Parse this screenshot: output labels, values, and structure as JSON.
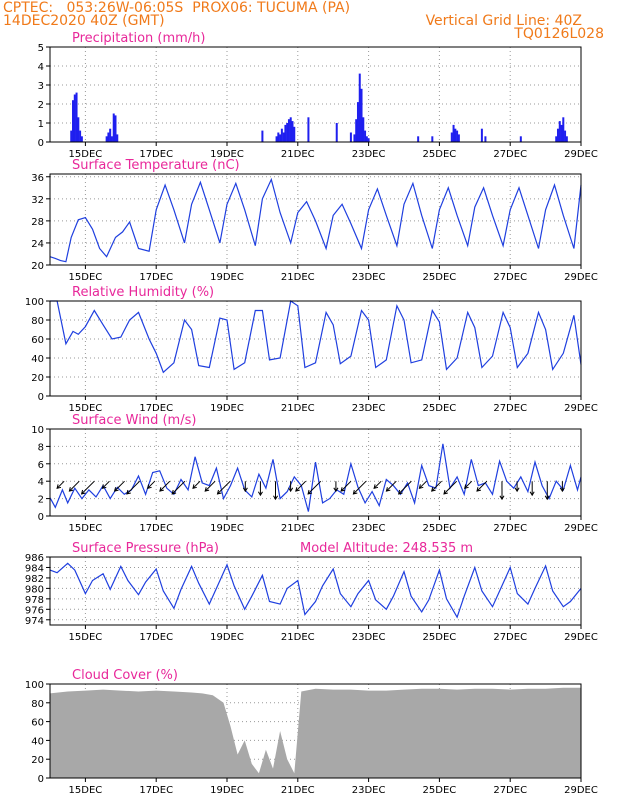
{
  "header": {
    "source": "CPTEC:",
    "coords": "053:26W-06:05S",
    "location": "PROX06: TUCUMA (PA)",
    "date": "14DEC2020 40Z (GMT)",
    "grid_line": "Vertical Grid Line: 40Z",
    "code": "TQ0126L028"
  },
  "chart_data": [
    {
      "type": "bar",
      "title": "Precipitation (mm/h)",
      "ylim": [
        0,
        5
      ],
      "yticks": [
        0,
        1,
        2,
        3,
        4,
        5
      ],
      "xlim": [
        14.0,
        29.0
      ],
      "xticks": [
        "15DEC",
        "17DEC",
        "19DEC",
        "21DEC",
        "23DEC",
        "25DEC",
        "27DEC",
        "29DEC"
      ],
      "xtick_days": [
        15,
        17,
        19,
        21,
        23,
        25,
        27,
        29
      ],
      "series": [
        {
          "x": [
            14.6,
            14.65,
            14.7,
            14.75,
            14.8,
            14.85,
            14.9,
            15.6,
            15.65,
            15.7,
            15.75,
            15.8,
            15.85,
            15.9,
            20.0,
            20.4,
            20.45,
            20.5,
            20.55,
            20.6,
            20.65,
            20.7,
            20.75,
            20.8,
            20.85,
            20.9,
            21.3,
            22.1,
            22.5,
            22.6,
            22.65,
            22.7,
            22.75,
            22.8,
            22.85,
            22.9,
            22.95,
            23.0,
            24.4,
            24.8,
            25.35,
            25.4,
            25.45,
            25.5,
            25.55,
            26.2,
            26.3,
            27.3,
            28.3,
            28.35,
            28.4,
            28.45,
            28.5,
            28.55,
            28.6
          ],
          "values": [
            0.6,
            2.2,
            2.5,
            2.6,
            1.3,
            0.6,
            0.3,
            0.3,
            0.5,
            0.7,
            0.3,
            1.5,
            1.4,
            0.4,
            0.6,
            0.3,
            0.5,
            0.4,
            0.7,
            0.5,
            0.9,
            1.0,
            1.2,
            1.3,
            1.1,
            0.8,
            1.3,
            1.0,
            0.5,
            0.4,
            1.2,
            2.1,
            3.6,
            2.8,
            1.3,
            0.6,
            0.3,
            0.2,
            0.3,
            0.3,
            0.5,
            0.9,
            0.7,
            0.6,
            0.4,
            0.7,
            0.3,
            0.3,
            0.3,
            0.7,
            1.1,
            0.9,
            1.3,
            0.6,
            0.3
          ],
          "color": "#1f1fef"
        }
      ]
    },
    {
      "type": "line",
      "title": "Surface Temperature (nC)",
      "ylim": [
        20,
        36.5
      ],
      "yticks": [
        20,
        24,
        28,
        32,
        36
      ],
      "xlim": [
        14.0,
        29.0
      ],
      "xticks": [
        "15DEC",
        "17DEC",
        "19DEC",
        "21DEC",
        "23DEC",
        "25DEC",
        "27DEC",
        "29DEC"
      ],
      "xtick_days": [
        15,
        17,
        19,
        21,
        23,
        25,
        27,
        29
      ],
      "series": [
        {
          "x": [
            14.0,
            14.15,
            14.3,
            14.45,
            14.6,
            14.8,
            15.0,
            15.2,
            15.4,
            15.6,
            15.85,
            16.05,
            16.25,
            16.5,
            16.8,
            17.0,
            17.25,
            17.5,
            17.8,
            18.0,
            18.25,
            18.5,
            18.8,
            19.0,
            19.25,
            19.5,
            19.8,
            20.0,
            20.25,
            20.5,
            20.8,
            21.0,
            21.25,
            21.5,
            21.8,
            22.0,
            22.25,
            22.5,
            22.8,
            23.0,
            23.25,
            23.5,
            23.8,
            24.0,
            24.25,
            24.5,
            24.8,
            25.0,
            25.25,
            25.5,
            25.8,
            26.0,
            26.25,
            26.5,
            26.8,
            27.0,
            27.25,
            27.5,
            27.8,
            28.0,
            28.25,
            28.5,
            28.8,
            29.0
          ],
          "values": [
            21.5,
            21.2,
            20.8,
            20.6,
            25.0,
            28.2,
            28.6,
            26.5,
            23.0,
            21.5,
            25.0,
            26.0,
            27.8,
            23.0,
            22.5,
            30.0,
            34.5,
            30.0,
            24.0,
            31.0,
            35.0,
            30.0,
            24.0,
            31.0,
            34.8,
            30.0,
            23.5,
            32.0,
            35.5,
            29.5,
            24.0,
            29.5,
            31.5,
            28.0,
            23.0,
            29.0,
            31.0,
            27.5,
            23.0,
            30.0,
            33.8,
            29.0,
            23.5,
            31.0,
            34.8,
            29.0,
            23.0,
            30.0,
            34.0,
            29.0,
            23.5,
            30.5,
            34.0,
            29.0,
            23.5,
            30.0,
            34.0,
            29.0,
            23.0,
            30.0,
            34.5,
            29.0,
            23.0,
            34.5
          ],
          "color": "#1f3fdf"
        }
      ]
    },
    {
      "type": "line",
      "title": "Relative Humidity (%)",
      "ylim": [
        0,
        100
      ],
      "yticks": [
        0,
        20,
        40,
        60,
        80,
        100
      ],
      "xlim": [
        14.0,
        29.0
      ],
      "xticks": [
        "15DEC",
        "17DEC",
        "19DEC",
        "21DEC",
        "23DEC",
        "25DEC",
        "27DEC",
        "29DEC"
      ],
      "xtick_days": [
        15,
        17,
        19,
        21,
        23,
        25,
        27,
        29
      ],
      "series": [
        {
          "x": [
            14.0,
            14.2,
            14.45,
            14.65,
            14.8,
            15.0,
            15.25,
            15.5,
            15.75,
            16.0,
            16.25,
            16.5,
            16.8,
            17.0,
            17.2,
            17.5,
            17.8,
            18.0,
            18.2,
            18.5,
            18.8,
            19.0,
            19.2,
            19.5,
            19.8,
            20.0,
            20.2,
            20.5,
            20.8,
            21.0,
            21.2,
            21.5,
            21.8,
            22.0,
            22.2,
            22.5,
            22.8,
            23.0,
            23.2,
            23.5,
            23.8,
            24.0,
            24.2,
            24.5,
            24.8,
            25.0,
            25.2,
            25.5,
            25.8,
            26.0,
            26.2,
            26.5,
            26.8,
            27.0,
            27.2,
            27.5,
            27.8,
            28.0,
            28.2,
            28.5,
            28.8,
            29.0
          ],
          "values": [
            100,
            100,
            55,
            68,
            65,
            73,
            90,
            75,
            60,
            62,
            80,
            88,
            60,
            45,
            25,
            35,
            80,
            70,
            32,
            30,
            82,
            80,
            28,
            35,
            90,
            90,
            38,
            40,
            100,
            95,
            30,
            35,
            88,
            75,
            34,
            42,
            90,
            80,
            30,
            38,
            95,
            80,
            35,
            38,
            90,
            78,
            28,
            40,
            88,
            72,
            30,
            42,
            88,
            72,
            30,
            45,
            88,
            70,
            28,
            45,
            85,
            33
          ],
          "color": "#1f3fdf"
        }
      ]
    },
    {
      "type": "line",
      "title": "Surface Wind (m/s)",
      "ylim": [
        0,
        10
      ],
      "yticks": [
        0,
        2,
        4,
        6,
        8,
        10
      ],
      "xlim": [
        14.0,
        29.0
      ],
      "xticks": [
        "15DEC",
        "17DEC",
        "19DEC",
        "21DEC",
        "23DEC",
        "25DEC",
        "27DEC",
        "29DEC"
      ],
      "xtick_days": [
        15,
        17,
        19,
        21,
        23,
        25,
        27,
        29
      ],
      "series": [
        {
          "x": [
            14.0,
            14.15,
            14.35,
            14.5,
            14.7,
            14.9,
            15.1,
            15.3,
            15.5,
            15.7,
            15.9,
            16.1,
            16.3,
            16.5,
            16.7,
            16.9,
            17.1,
            17.3,
            17.5,
            17.7,
            17.9,
            18.1,
            18.3,
            18.5,
            18.7,
            18.9,
            19.1,
            19.3,
            19.5,
            19.7,
            19.9,
            20.1,
            20.3,
            20.5,
            20.7,
            20.9,
            21.1,
            21.3,
            21.5,
            21.7,
            21.9,
            22.1,
            22.3,
            22.5,
            22.7,
            22.9,
            23.1,
            23.3,
            23.5,
            23.7,
            23.9,
            24.1,
            24.3,
            24.5,
            24.7,
            24.9,
            25.1,
            25.3,
            25.5,
            25.7,
            25.9,
            26.1,
            26.3,
            26.5,
            26.7,
            26.9,
            27.1,
            27.3,
            27.5,
            27.7,
            27.9,
            28.1,
            28.3,
            28.5,
            28.7,
            28.9,
            29.0
          ],
          "values": [
            2.1,
            1.0,
            3.0,
            1.5,
            3.2,
            2.0,
            3.0,
            2.2,
            3.5,
            2.0,
            3.3,
            2.5,
            3.0,
            4.6,
            2.5,
            5.0,
            5.2,
            3.2,
            2.5,
            4.2,
            3.0,
            6.8,
            3.8,
            3.5,
            5.5,
            2.0,
            3.5,
            5.5,
            3.0,
            2.2,
            4.8,
            3.2,
            6.5,
            2.0,
            2.8,
            4.5,
            3.5,
            0.5,
            6.2,
            1.5,
            2.0,
            3.0,
            2.5,
            6.0,
            3.3,
            1.5,
            2.8,
            1.2,
            4.2,
            3.5,
            2.5,
            3.8,
            1.5,
            5.8,
            3.5,
            3.2,
            8.3,
            3.2,
            4.5,
            2.5,
            6.5,
            3.5,
            3.8,
            2.5,
            6.3,
            4.0,
            3.2,
            4.5,
            2.8,
            6.2,
            3.5,
            2.0,
            4.0,
            3.0,
            5.8,
            3.0,
            4.5
          ],
          "color": "#1f3fdf"
        }
      ],
      "arrows_dir_deg": [
        225,
        225,
        225,
        225,
        225,
        225,
        225,
        225,
        225,
        225,
        225,
        225,
        270,
        270,
        270,
        270,
        225,
        225,
        270,
        225,
        225,
        225,
        225,
        225,
        225,
        225,
        225,
        225,
        225,
        270,
        270,
        270,
        270,
        270
      ]
    },
    {
      "type": "line",
      "title": "Surface Pressure (hPa)",
      "subtitle": "Model Altitude: 248.535 m",
      "ylim": [
        973,
        986
      ],
      "yticks": [
        974,
        976,
        978,
        980,
        982,
        984,
        986
      ],
      "xlim": [
        14.0,
        29.0
      ],
      "xticks": [
        "15DEC",
        "17DEC",
        "19DEC",
        "21DEC",
        "23DEC",
        "25DEC",
        "27DEC",
        "29DEC"
      ],
      "xtick_days": [
        15,
        17,
        19,
        21,
        23,
        25,
        27,
        29
      ],
      "series": [
        {
          "x": [
            14.0,
            14.2,
            14.5,
            14.7,
            15.0,
            15.2,
            15.5,
            15.7,
            16.0,
            16.2,
            16.5,
            16.7,
            17.0,
            17.2,
            17.5,
            17.7,
            18.0,
            18.2,
            18.5,
            18.7,
            19.0,
            19.2,
            19.5,
            19.7,
            20.0,
            20.2,
            20.5,
            20.7,
            21.0,
            21.2,
            21.5,
            21.7,
            22.0,
            22.2,
            22.5,
            22.7,
            23.0,
            23.2,
            23.5,
            23.7,
            24.0,
            24.2,
            24.5,
            24.7,
            25.0,
            25.2,
            25.5,
            25.7,
            26.0,
            26.2,
            26.5,
            26.7,
            27.0,
            27.2,
            27.5,
            27.7,
            28.0,
            28.2,
            28.5,
            28.7,
            29.0
          ],
          "values": [
            983.5,
            983.0,
            984.8,
            983.5,
            979.0,
            981.5,
            982.8,
            979.8,
            984.2,
            981.5,
            978.8,
            981.2,
            983.7,
            979.5,
            976.2,
            979.8,
            984.2,
            981.0,
            977.0,
            980.0,
            984.5,
            980.5,
            976.0,
            978.5,
            982.5,
            977.5,
            977.0,
            980.0,
            981.5,
            975.0,
            977.5,
            980.5,
            983.7,
            979.0,
            976.5,
            979.0,
            981.5,
            977.8,
            976.0,
            978.5,
            983.2,
            978.5,
            975.5,
            977.8,
            983.5,
            978.0,
            974.5,
            978.5,
            984.0,
            979.5,
            976.5,
            979.5,
            984.0,
            979.0,
            977.0,
            980.0,
            984.3,
            979.5,
            976.5,
            977.5,
            980.0
          ],
          "color": "#1f3fdf"
        }
      ]
    },
    {
      "type": "area",
      "title": "Cloud Cover (%)",
      "ylim": [
        0,
        100
      ],
      "yticks": [
        0,
        20,
        40,
        60,
        80,
        100
      ],
      "xlim": [
        14.0,
        29.0
      ],
      "xticks": [
        "15DEC",
        "17DEC",
        "19DEC",
        "21DEC",
        "23DEC",
        "25DEC",
        "27DEC",
        "29DEC"
      ],
      "xtick_days": [
        15,
        17,
        19,
        21,
        23,
        25,
        27,
        29
      ],
      "series": [
        {
          "x": [
            14.0,
            14.5,
            15.0,
            15.5,
            16.0,
            16.5,
            17.0,
            17.5,
            18.0,
            18.3,
            18.6,
            18.9,
            19.1,
            19.3,
            19.5,
            19.7,
            19.9,
            20.1,
            20.3,
            20.5,
            20.7,
            20.9,
            21.1,
            21.5,
            22.0,
            22.5,
            23.0,
            23.5,
            24.0,
            24.5,
            25.0,
            25.5,
            26.0,
            26.5,
            27.0,
            27.5,
            28.0,
            28.5,
            29.0
          ],
          "values": [
            90,
            92,
            93,
            94,
            93,
            92,
            93,
            92,
            91,
            90,
            88,
            80,
            55,
            25,
            40,
            15,
            5,
            30,
            10,
            50,
            20,
            5,
            92,
            95,
            94,
            94,
            93,
            93,
            94,
            95,
            95,
            94,
            95,
            95,
            94,
            95,
            95,
            96,
            96
          ],
          "color": "#a8a8a8"
        }
      ]
    }
  ]
}
